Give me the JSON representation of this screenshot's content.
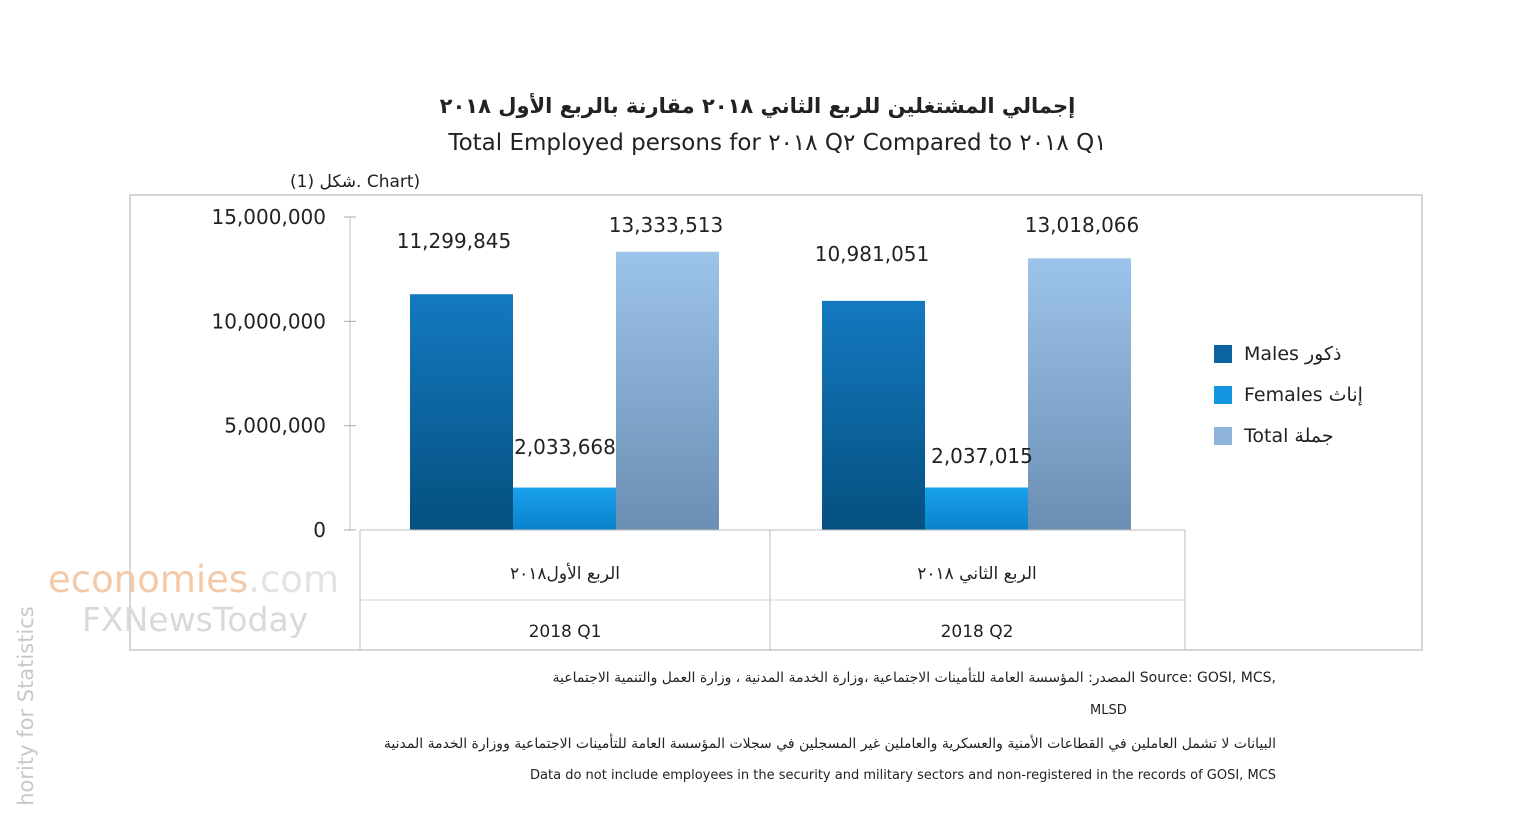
{
  "header": {
    "title_ar": "إجمالي المشتغلين للربع الثاني ٢٠١٨ مقارنة بالربع الأول ٢٠١٨",
    "title_en": "Total Employed persons for ٢٠١٨ Q٢ Compared to ٢٠١٨ Q١",
    "figure_label": "شكل (1). Chart)"
  },
  "chart_data": {
    "type": "bar",
    "categories": [
      "2018 Q1",
      "2018 Q2"
    ],
    "categories_ar": [
      "الربع الأول٢٠١٨",
      "الربع الثاني ٢٠١٨"
    ],
    "series": [
      {
        "name": "Males ذكور",
        "values": [
          11299845,
          10981051
        ],
        "labels": [
          "11,299,845",
          "10,981,051"
        ],
        "color": "#0b72b5"
      },
      {
        "name": "Females إناث",
        "values": [
          2033668,
          2037015
        ],
        "labels": [
          "2,033,668",
          "2,037,015"
        ],
        "color": "#1496e0"
      },
      {
        "name": "Total جملة",
        "values": [
          13333513,
          13018066
        ],
        "labels": [
          "13,333,513",
          "13,018,066"
        ],
        "color": "#8fb6de"
      }
    ],
    "yticks": [
      "0",
      "5,000,000",
      "10,000,000",
      "15,000,000"
    ],
    "ylim": [
      0,
      15000000
    ],
    "legend_position": "right"
  },
  "footer": {
    "source_line": "المصدر: المؤسسة العامة للتأمينات الاجتماعية ،وزارة الخدمة المدنية ، وزارة العمل والتنمية الاجتماعية Source: GOSI, MCS,",
    "source_line2": "MLSD",
    "note_ar": "البيانات لا تشمل العاملين في القطاعات الأمنية والعسكرية والعاملين غير المسجلين في سجلات المؤسسة العامة للتأمينات الاجتماعية ووزارة الخدمة المدنية",
    "note_en": "Data do not include employees in the security and military sectors and non-registered in the records of GOSI, MCS"
  },
  "watermark": {
    "brand1": "economies",
    "brand1_suffix": ".com",
    "brand2": "FXNewsToday",
    "side_text": "hority for Statistics"
  }
}
